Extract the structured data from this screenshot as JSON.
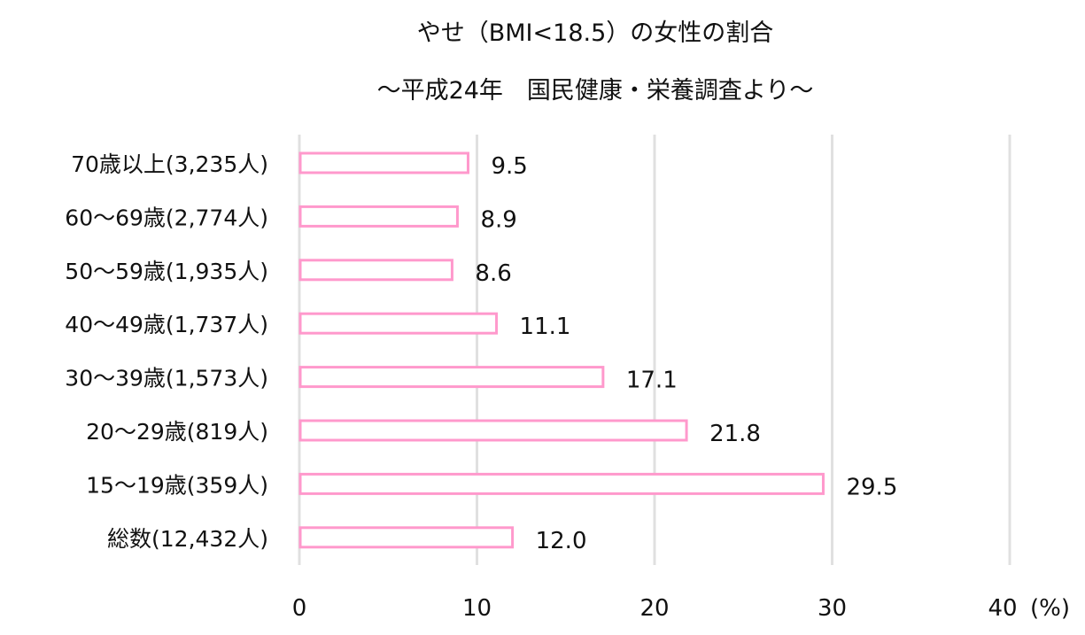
{
  "chart_data": {
    "type": "bar",
    "orientation": "horizontal",
    "title": "やせ（BMI<18.5）の女性の割合",
    "subtitle": "～平成24年　国民健康・栄養調査より～",
    "categories": [
      "70歳以上(3,235人)",
      "60～69歳(2,774人)",
      "50～59歳(1,935人)",
      "40～49歳(1,737人)",
      "30～39歳(1,573人)",
      "20～29歳(819人)",
      "15～19歳(359人)",
      "総数(12,432人)"
    ],
    "values": [
      9.5,
      8.9,
      8.6,
      11.1,
      17.1,
      21.8,
      29.5,
      12.0
    ],
    "value_labels": [
      "9.5",
      "8.9",
      "8.6",
      "11.1",
      "17.1",
      "21.8",
      "29.5",
      "12.0"
    ],
    "xticks": [
      "0",
      "10",
      "20",
      "30",
      "40"
    ],
    "xtick_values": [
      0,
      10,
      20,
      30,
      40
    ],
    "xunit": "(%)",
    "xlim": [
      0,
      40
    ],
    "grid": true,
    "bar_color": "#ff99cc",
    "grid_color": "#e0e0e0"
  }
}
